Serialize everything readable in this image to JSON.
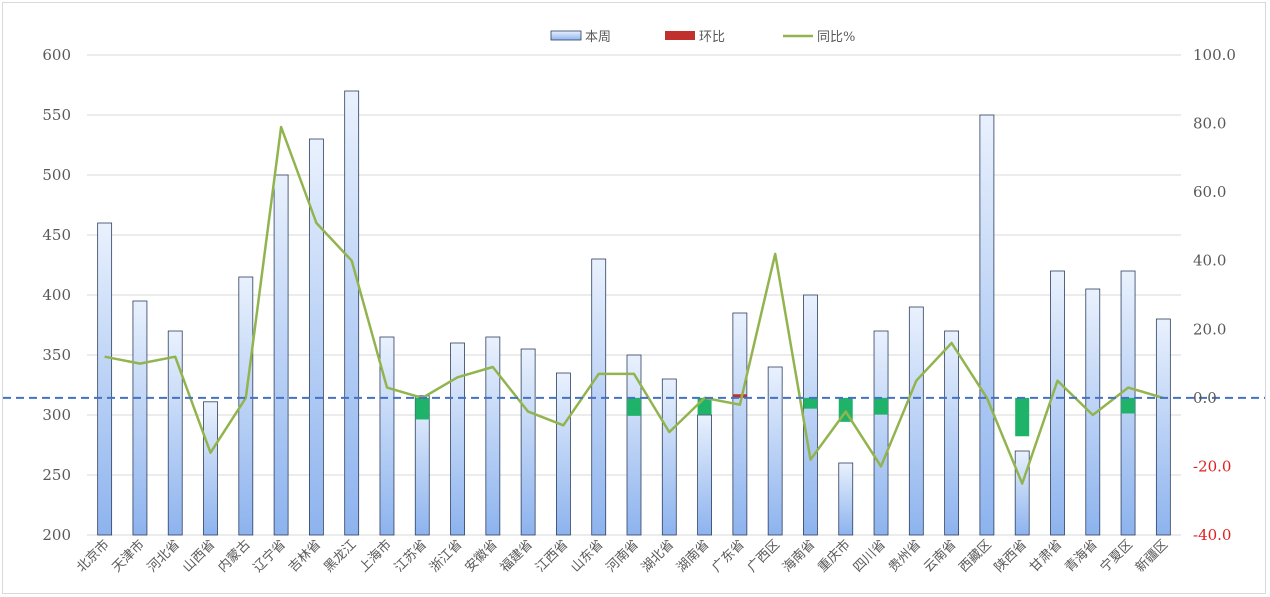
{
  "chart_data": {
    "type": "bar",
    "categories": [
      "北京市",
      "天津市",
      "河北省",
      "山西省",
      "内蒙古",
      "辽宁省",
      "吉林省",
      "黑龙江",
      "上海市",
      "江苏省",
      "浙江省",
      "安徽省",
      "福建省",
      "江西省",
      "山东省",
      "河南省",
      "湖北省",
      "湖南省",
      "广东省",
      "广西区",
      "海南省",
      "重庆市",
      "四川省",
      "贵州省",
      "云南省",
      "西藏区",
      "陕西省",
      "甘肃省",
      "青海省",
      "宁夏区",
      "新疆区"
    ],
    "series": [
      {
        "name": "本周",
        "type": "bar",
        "axis": "left",
        "values": [
          460,
          395,
          370,
          311,
          415,
          500,
          530,
          570,
          365,
          316,
          360,
          365,
          355,
          335,
          430,
          350,
          330,
          300,
          385,
          340,
          400,
          260,
          370,
          390,
          370,
          550,
          270,
          420,
          405,
          420,
          380
        ]
      },
      {
        "name": "环比",
        "type": "bar",
        "axis": "left",
        "values": [
          0,
          0,
          0,
          0,
          0,
          0,
          0,
          0,
          0,
          -18,
          0,
          0,
          0,
          0,
          0,
          -15,
          0,
          -14,
          3,
          0,
          -9,
          -20,
          -14,
          0,
          0,
          0,
          -32,
          0,
          0,
          -13,
          0
        ]
      },
      {
        "name": "同比%",
        "type": "line",
        "axis": "right",
        "values": [
          12,
          10,
          12,
          -16,
          0,
          79,
          51,
          40,
          3,
          0,
          6,
          9,
          -4,
          -8,
          7,
          7,
          -10,
          0,
          -2,
          42,
          -18,
          -4,
          -20,
          5,
          16,
          0,
          -25,
          5,
          -5,
          3,
          0
        ]
      }
    ],
    "y_left": {
      "min": 200,
      "max": 600,
      "step": 50,
      "ticks": [
        "600",
        "550",
        "500",
        "450",
        "400",
        "350",
        "300",
        "250",
        "200"
      ]
    },
    "y_right": {
      "min": -40,
      "max": 100,
      "step": 20,
      "ticks": [
        "100.0",
        "80.0",
        "60.0",
        "40.0",
        "20.0",
        "0.0",
        "-20.0",
        "-40.0"
      ]
    },
    "reference_line": {
      "axis": "right",
      "value": 0,
      "color": "#4472c4",
      "style": "dashed"
    },
    "legend": {
      "placement": "top-center",
      "items": [
        "本周",
        "环比",
        "同比%"
      ]
    },
    "colors": {
      "bar_top": "#e9f1fd",
      "bar_bottom": "#8db3ee",
      "bar_stroke": "#2f3f5f",
      "positive_change": "#c0312d",
      "negative_change": "#1fb36a",
      "line": "#92b44f",
      "negative_tick": "#e02020",
      "grid": "#d9d9d9"
    },
    "grid": true
  }
}
